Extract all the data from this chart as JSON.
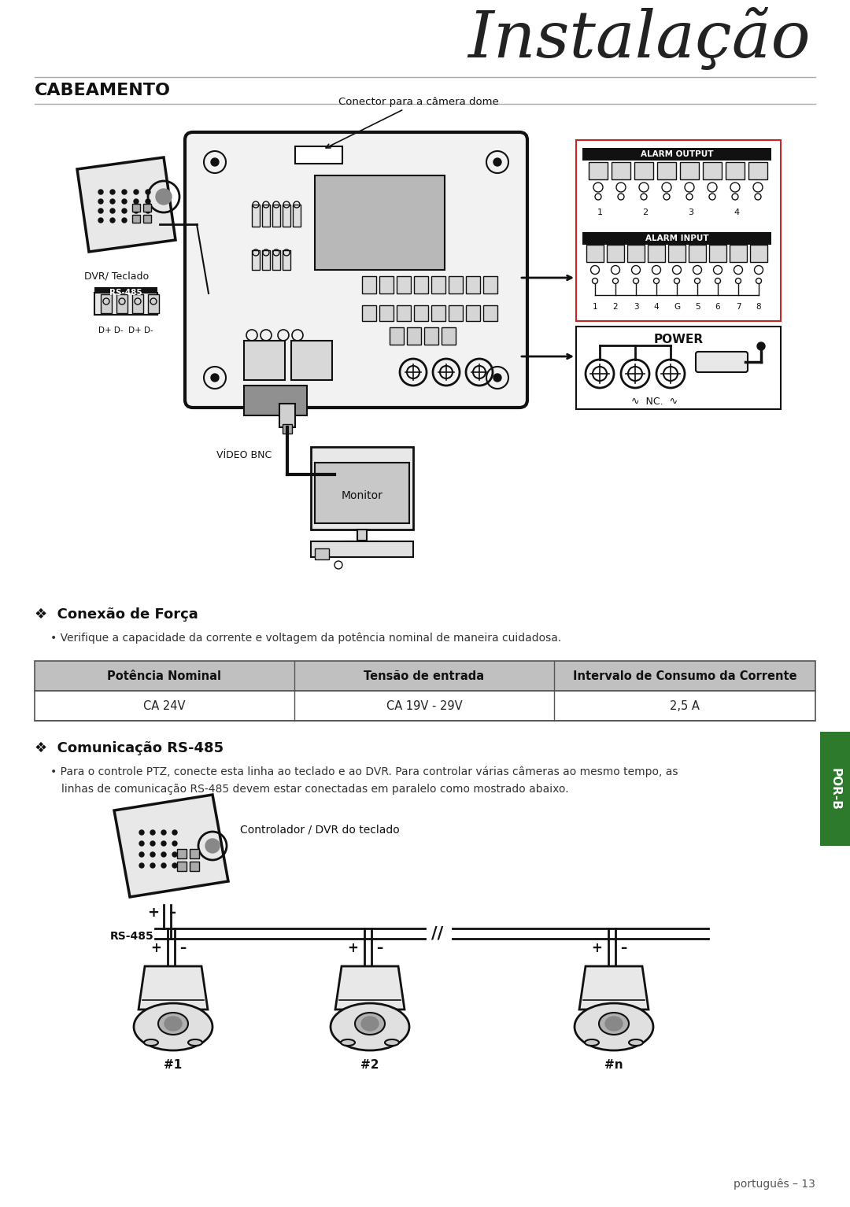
{
  "title": "Instalação",
  "section1": "CABEAMENTO",
  "bg_color": "#ffffff",
  "title_color": "#222222",
  "section_color": "#111111",
  "subtitle1": "❖  Conexão de Força",
  "bullet1": "• Verifique a capacidade da corrente e voltagem da potência nominal de maneira cuidadosa.",
  "table_headers": [
    "Potência Nominal",
    "Tensão de entrada",
    "Intervalo de Consumo da Corrente"
  ],
  "table_row": [
    "CA 24V",
    "CA 19V - 29V",
    "2,5 A"
  ],
  "table_header_bg": "#c0c0c0",
  "subtitle2": "❖  Comunicação RS-485",
  "bullet2_line1": "• Para o controle PTZ, conecte esta linha ao teclado e ao DVR. Para controlar várias câmeras ao mesmo tempo, as",
  "bullet2_line2": "linhas de comunicação RS-485 devem estar conectadas em paralelo como mostrado abaixo.",
  "label_conector": "Conector para a câmera dome",
  "label_video_bnc": "VÍDEO BNC",
  "label_monitor": "Monitor",
  "label_dvr": "DVR/ Teclado",
  "label_rs485_box": "RS-485",
  "label_d_pins": "D+ D-  D+ D-",
  "label_alarm_output": "ALARM OUTPUT",
  "label_alarm_input": "ALARM INPUT",
  "label_power_title": "POWER",
  "label_nc": "∿  NC.  ∿",
  "label_controller": "Controlador / DVR do teclado",
  "label_rs485_side": "RS-485",
  "labels_cameras": [
    "#1",
    "#2",
    "#n"
  ],
  "footer": "português – 13",
  "sidebar_text": "POR-B",
  "sidebar_bg": "#2d7a2d",
  "line_color": "#111111",
  "gray_dark": "#333333",
  "gray_mid": "#888888",
  "gray_light": "#cccccc",
  "alarm_header_bg": "#111111"
}
